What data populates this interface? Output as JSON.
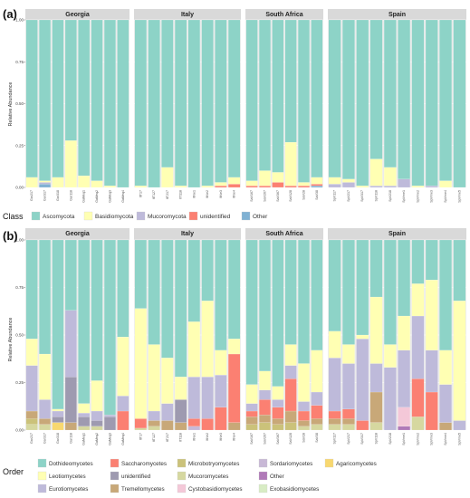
{
  "panel_labels": {
    "a": "(a)",
    "b": "(b)"
  },
  "ylabel": "Relative Abundance",
  "yticks": [
    "0.00",
    "0.25",
    "0.50",
    "0.75",
    "1.00"
  ],
  "legend_a": {
    "title": "Class",
    "items": [
      {
        "label": "Ascomycota",
        "color": "#8dd3c7"
      },
      {
        "label": "Basidiomycota",
        "color": "#ffffb3"
      },
      {
        "label": "Mucoromycota",
        "color": "#bebada"
      },
      {
        "label": "unidentified",
        "color": "#fb8072"
      },
      {
        "label": "Other",
        "color": "#80b1d3"
      }
    ]
  },
  "legend_b": {
    "title": "Order",
    "items": [
      {
        "label": "Dothideomycetes",
        "color": "#8dd3c7"
      },
      {
        "label": "Leotiomycetes",
        "color": "#ffffb3"
      },
      {
        "label": "Eurotiomycetes",
        "color": "#bebada"
      },
      {
        "label": "Saccharomycetes",
        "color": "#fb8072"
      },
      {
        "label": "unidentified",
        "color": "#9e9ab0"
      },
      {
        "label": "Tremellomycetes",
        "color": "#c8a878"
      },
      {
        "label": "Microbotryomycetes",
        "color": "#cbc27a"
      },
      {
        "label": "Mucoromycetes",
        "color": "#d6d8a0"
      },
      {
        "label": "Cystobasidiomycetes",
        "color": "#f4c8d8"
      },
      {
        "label": "Sordariomycetes",
        "color": "#c8b8d6"
      },
      {
        "label": "Other",
        "color": "#b07ab8"
      },
      {
        "label": "Exobasidiomycetes",
        "color": "#d8ecc4"
      },
      {
        "label": "Agaricomycetes",
        "color": "#f8d870"
      }
    ]
  },
  "chart_data": [
    {
      "type": "bar",
      "stacked": true,
      "panel": "(a)",
      "ylabel": "Relative Abundance",
      "ylim": [
        0,
        1
      ],
      "legend_title": "Class",
      "facets": [
        {
          "name": "Georgia",
          "samples": [
            {
              "label": "Gar217",
              "Ascomycota": 0.94,
              "Basidiomycota": 0.06
            },
            {
              "label": "Gar317",
              "Ascomycota": 0.96,
              "Basidiomycota": 0.01,
              "Mucoromycota": 0.01,
              "Other": 0.02
            },
            {
              "label": "Gar318",
              "Ascomycota": 0.94,
              "Basidiomycota": 0.06
            },
            {
              "label": "Gar118",
              "Ascomycota": 0.72,
              "Basidiomycota": 0.28
            },
            {
              "label": "GaMeq1",
              "Ascomycota": 0.93,
              "Basidiomycota": 0.07
            },
            {
              "label": "GaMeq2",
              "Ascomycota": 0.96,
              "Basidiomycota": 0.04
            },
            {
              "label": "GaMeq3",
              "Ascomycota": 0.99,
              "Basidiomycota": 0.01
            },
            {
              "label": "GaMeq4",
              "Ascomycota": 1.0,
              "Basidiomycota": 0.0
            }
          ]
        },
        {
          "name": "Italy",
          "samples": [
            {
              "label": "ItT17",
              "Ascomycota": 0.99,
              "Basidiomycota": 0.01
            },
            {
              "label": "ItT127",
              "Ascomycota": 1.0,
              "Basidiomycota": 0.0
            },
            {
              "label": "ItT217",
              "Ascomycota": 0.88,
              "Basidiomycota": 0.12
            },
            {
              "label": "ItT118",
              "Ascomycota": 0.99,
              "Basidiomycota": 0.01
            },
            {
              "label": "ItNe1",
              "Ascomycota": 1.0,
              "Basidiomycota": 0.0
            },
            {
              "label": "ItNe2",
              "Ascomycota": 0.99,
              "Basidiomycota": 0.01
            },
            {
              "label": "ItNe3",
              "Ascomycota": 0.97,
              "Basidiomycota": 0.02,
              "unidentified": 0.01
            },
            {
              "label": "ItNe4",
              "Ascomycota": 0.94,
              "Basidiomycota": 0.04,
              "unidentified": 0.02
            }
          ]
        },
        {
          "name": "South Africa",
          "samples": [
            {
              "label": "SaV167",
              "Ascomycota": 0.96,
              "Basidiomycota": 0.03,
              "unidentified": 0.01
            },
            {
              "label": "SaV267",
              "Ascomycota": 0.9,
              "Basidiomycota": 0.09,
              "unidentified": 0.01
            },
            {
              "label": "SaV367",
              "Ascomycota": 0.91,
              "Basidiomycota": 0.06,
              "unidentified": 0.03
            },
            {
              "label": "SaV128",
              "Ascomycota": 0.73,
              "Basidiomycota": 0.26,
              "unidentified": 0.01
            },
            {
              "label": "SaV28",
              "Ascomycota": 0.97,
              "Basidiomycota": 0.02,
              "unidentified": 0.01
            },
            {
              "label": "SaV38",
              "Ascomycota": 0.94,
              "Basidiomycota": 0.04,
              "unidentified": 0.01,
              "Other": 0.01
            }
          ]
        },
        {
          "name": "Spain",
          "samples": [
            {
              "label": "SpV117",
              "Ascomycota": 0.94,
              "Basidiomycota": 0.04,
              "Mucoromycota": 0.02
            },
            {
              "label": "SpV217",
              "Ascomycota": 0.95,
              "Basidiomycota": 0.02,
              "Mucoromycota": 0.03
            },
            {
              "label": "SpV317",
              "Ascomycota": 0.99,
              "Basidiomycota": 0.01
            },
            {
              "label": "SpV118",
              "Ascomycota": 0.83,
              "Basidiomycota": 0.16,
              "Mucoromycota": 0.01
            },
            {
              "label": "SpV218",
              "Ascomycota": 0.88,
              "Basidiomycota": 0.11,
              "Mucoromycota": 0.01
            },
            {
              "label": "SpVme1",
              "Ascomycota": 0.95,
              "Basidiomycota": 0.0,
              "Mucoromycota": 0.05
            },
            {
              "label": "SpVme2",
              "Ascomycota": 0.99,
              "Basidiomycota": 0.01
            },
            {
              "label": "SpVme3",
              "Ascomycota": 0.99,
              "Basidiomycota": 0.0,
              "Mucoromycota": 0.01
            },
            {
              "label": "SpVme4",
              "Ascomycota": 0.96,
              "Basidiomycota": 0.04
            },
            {
              "label": "SpVme5",
              "Ascomycota": 1.0,
              "Basidiomycota": 0.0
            }
          ]
        }
      ]
    },
    {
      "type": "bar",
      "stacked": true,
      "panel": "(b)",
      "ylabel": "Relative Abundance",
      "ylim": [
        0,
        1
      ],
      "legend_title": "Order",
      "facets": [
        {
          "name": "Georgia",
          "samples": [
            {
              "label": "Gar217",
              "Dothideomycetes": 0.52,
              "Leotiomycetes": 0.14,
              "Eurotiomycetes": 0.24,
              "Microbotryomycetes": 0.03,
              "Tremellomycetes": 0.04,
              "Mucoromycetes": 0.03
            },
            {
              "label": "Gar317",
              "Dothideomycetes": 0.6,
              "Leotiomycetes": 0.24,
              "Eurotiomycetes": 0.1,
              "Tremellomycetes": 0.03,
              "Mucoromycetes": 0.03
            },
            {
              "label": "Gar318",
              "Dothideomycetes": 0.89,
              "Leotiomycetes": 0.01,
              "Eurotiomycetes": 0.03,
              "unidentified": 0.03,
              "Agaricomycetes": 0.04
            },
            {
              "label": "Gar118",
              "Dothideomycetes": 0.37,
              "Eurotiomycetes": 0.35,
              "unidentified": 0.24,
              "Tremellomycetes": 0.04
            },
            {
              "label": "GaMeq1",
              "Dothideomycetes": 0.86,
              "Leotiomycetes": 0.05,
              "Eurotiomycetes": 0.02,
              "unidentified": 0.05,
              "Mucoromycetes": 0.02
            },
            {
              "label": "GaMeq2",
              "Dothideomycetes": 0.74,
              "Leotiomycetes": 0.16,
              "Eurotiomycetes": 0.05,
              "unidentified": 0.03,
              "Mucoromycetes": 0.02
            },
            {
              "label": "GaMeq3",
              "Dothideomycetes": 0.92,
              "Eurotiomycetes": 0.01,
              "unidentified": 0.07
            },
            {
              "label": "GaMeq4",
              "Dothideomycetes": 0.51,
              "Leotiomycetes": 0.31,
              "Eurotiomycetes": 0.08,
              "Saccharomycetes": 0.1
            }
          ]
        },
        {
          "name": "Italy",
          "samples": [
            {
              "label": "ItT17",
              "Dothideomycetes": 0.36,
              "Leotiomycetes": 0.58,
              "Saccharomycetes": 0.05,
              "Mucoromycetes": 0.01
            },
            {
              "label": "ItT127",
              "Dothideomycetes": 0.55,
              "Leotiomycetes": 0.35,
              "Eurotiomycetes": 0.05,
              "Tremellomycetes": 0.03,
              "Mucoromycetes": 0.02
            },
            {
              "label": "ItT217",
              "Dothideomycetes": 0.62,
              "Leotiomycetes": 0.24,
              "Eurotiomycetes": 0.09,
              "Tremellomycetes": 0.05
            },
            {
              "label": "ItT118",
              "Dothideomycetes": 0.72,
              "Leotiomycetes": 0.12,
              "unidentified": 0.12,
              "Tremellomycetes": 0.04
            },
            {
              "label": "ItNe1",
              "Dothideomycetes": 0.43,
              "Leotiomycetes": 0.29,
              "Eurotiomycetes": 0.22,
              "Saccharomycetes": 0.04,
              "Sordariomycetes": 0.02
            },
            {
              "label": "ItNe2",
              "Dothideomycetes": 0.32,
              "Leotiomycetes": 0.4,
              "Eurotiomycetes": 0.22,
              "Saccharomycetes": 0.06
            },
            {
              "label": "ItNe3",
              "Dothideomycetes": 0.58,
              "Leotiomycetes": 0.13,
              "Eurotiomycetes": 0.17,
              "Saccharomycetes": 0.12
            },
            {
              "label": "ItNe4",
              "Dothideomycetes": 0.52,
              "Leotiomycetes": 0.08,
              "Saccharomycetes": 0.36,
              "Tremellomycetes": 0.04
            }
          ]
        },
        {
          "name": "South Africa",
          "samples": [
            {
              "label": "SaV167",
              "Dothideomycetes": 0.76,
              "Leotiomycetes": 0.1,
              "Eurotiomycetes": 0.04,
              "Saccharomycetes": 0.03,
              "Tremellomycetes": 0.04,
              "Microbotryomycetes": 0.03
            },
            {
              "label": "SaV267",
              "Dothideomycetes": 0.69,
              "Leotiomycetes": 0.1,
              "Saccharomycetes": 0.08,
              "Eurotiomycetes": 0.05,
              "Tremellomycetes": 0.04,
              "Microbotryomycetes": 0.04
            },
            {
              "label": "SaV367",
              "Dothideomycetes": 0.77,
              "Leotiomycetes": 0.07,
              "Saccharomycetes": 0.06,
              "Eurotiomycetes": 0.04,
              "Tremellomycetes": 0.03,
              "Microbotryomycetes": 0.03
            },
            {
              "label": "SaV128",
              "Dothideomycetes": 0.55,
              "Leotiomycetes": 0.11,
              "Saccharomycetes": 0.17,
              "Eurotiomycetes": 0.07,
              "Tremellomycetes": 0.06,
              "Microbotryomycetes": 0.04
            },
            {
              "label": "SaV28",
              "Dothideomycetes": 0.65,
              "Leotiomycetes": 0.2,
              "Saccharomycetes": 0.05,
              "Eurotiomycetes": 0.05,
              "Tremellomycetes": 0.03,
              "Mucoromycetes": 0.02
            },
            {
              "label": "SaV38",
              "Dothideomycetes": 0.58,
              "Leotiomycetes": 0.22,
              "Saccharomycetes": 0.07,
              "Eurotiomycetes": 0.07,
              "Tremellomycetes": 0.03,
              "Mucoromycetes": 0.03
            }
          ]
        },
        {
          "name": "Spain",
          "samples": [
            {
              "label": "SpV117",
              "Dothideomycetes": 0.48,
              "Leotiomycetes": 0.14,
              "Eurotiomycetes": 0.28,
              "Saccharomycetes": 0.04,
              "Tremellomycetes": 0.03,
              "Mucoromycetes": 0.03
            },
            {
              "label": "SpV217",
              "Dothideomycetes": 0.55,
              "Leotiomycetes": 0.1,
              "Eurotiomycetes": 0.24,
              "Saccharomycetes": 0.05,
              "Tremellomycetes": 0.03,
              "Mucoromycetes": 0.03
            },
            {
              "label": "SpV317",
              "Dothideomycetes": 0.5,
              "Leotiomycetes": 0.02,
              "Eurotiomycetes": 0.43,
              "Saccharomycetes": 0.05
            },
            {
              "label": "SpV118",
              "Dothideomycetes": 0.3,
              "Leotiomycetes": 0.35,
              "Eurotiomycetes": 0.15,
              "Tremellomycetes": 0.16,
              "Mucoromycetes": 0.04
            },
            {
              "label": "SpV218",
              "Dothideomycetes": 0.55,
              "Leotiomycetes": 0.12,
              "Eurotiomycetes": 0.33
            },
            {
              "label": "SpVme1",
              "Dothideomycetes": 0.4,
              "Leotiomycetes": 0.18,
              "Eurotiomycetes": 0.3,
              "Cystobasidiomycetes": 0.1,
              "Other": 0.02
            },
            {
              "label": "SpVme2",
              "Dothideomycetes": 0.23,
              "Leotiomycetes": 0.17,
              "Eurotiomycetes": 0.33,
              "Saccharomycetes": 0.2,
              "Mucoromycetes": 0.07
            },
            {
              "label": "SpVme3",
              "Dothideomycetes": 0.21,
              "Leotiomycetes": 0.37,
              "Eurotiomycetes": 0.22,
              "Saccharomycetes": 0.2
            },
            {
              "label": "SpVme4",
              "Dothideomycetes": 0.58,
              "Leotiomycetes": 0.18,
              "Eurotiomycetes": 0.2,
              "Tremellomycetes": 0.04
            },
            {
              "label": "SpVme5",
              "Dothideomycetes": 0.32,
              "Leotiomycetes": 0.63,
              "Eurotiomycetes": 0.05
            }
          ]
        }
      ]
    }
  ]
}
